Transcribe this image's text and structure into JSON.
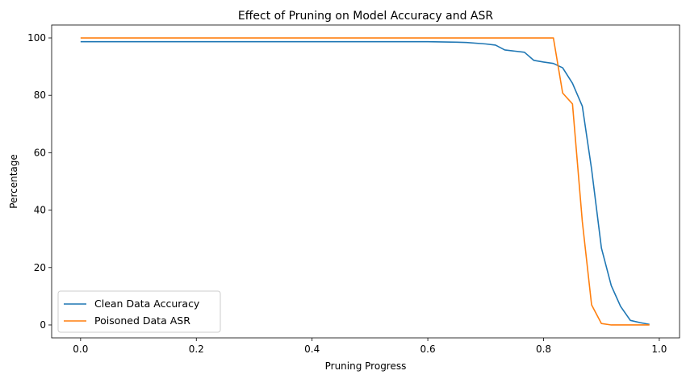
{
  "chart_data": {
    "type": "line",
    "title": "Effect of Pruning on Model Accuracy and ASR",
    "xlabel": "Pruning Progress",
    "ylabel": "Percentage",
    "xlim": [
      -0.05,
      1.035
    ],
    "ylim": [
      -4.5,
      104.5
    ],
    "xticks": [
      0.0,
      0.2,
      0.4,
      0.6,
      0.8,
      1.0
    ],
    "xtick_labels": [
      "0.0",
      "0.2",
      "0.4",
      "0.6",
      "0.8",
      "1.0"
    ],
    "yticks": [
      0,
      20,
      40,
      60,
      80,
      100
    ],
    "ytick_labels": [
      "0",
      "20",
      "40",
      "60",
      "80",
      "100"
    ],
    "grid": false,
    "legend_position": "bottom-left",
    "series": [
      {
        "name": "Clean Data Accuracy",
        "color": "#1f77b4",
        "x": [
          0.0,
          0.6,
          0.65,
          0.667,
          0.7,
          0.717,
          0.733,
          0.75,
          0.767,
          0.783,
          0.8,
          0.817,
          0.833,
          0.85,
          0.867,
          0.883,
          0.9,
          0.917,
          0.933,
          0.95,
          0.967,
          0.983
        ],
        "y": [
          98.7,
          98.7,
          98.5,
          98.4,
          97.9,
          97.5,
          95.8,
          95.4,
          95.0,
          92.2,
          91.6,
          91.1,
          89.6,
          84.2,
          76.2,
          54.3,
          26.8,
          13.7,
          6.5,
          1.6,
          0.8,
          0.2
        ]
      },
      {
        "name": "Poisoned Data ASR",
        "color": "#ff7f0e",
        "x": [
          0.0,
          0.817,
          0.833,
          0.85,
          0.867,
          0.883,
          0.9,
          0.917,
          0.933,
          0.95,
          0.967,
          0.983
        ],
        "y": [
          100.0,
          100.0,
          80.8,
          77.0,
          36.0,
          7.0,
          0.5,
          0.0,
          0.0,
          0.0,
          0.0,
          0.0
        ]
      }
    ]
  }
}
